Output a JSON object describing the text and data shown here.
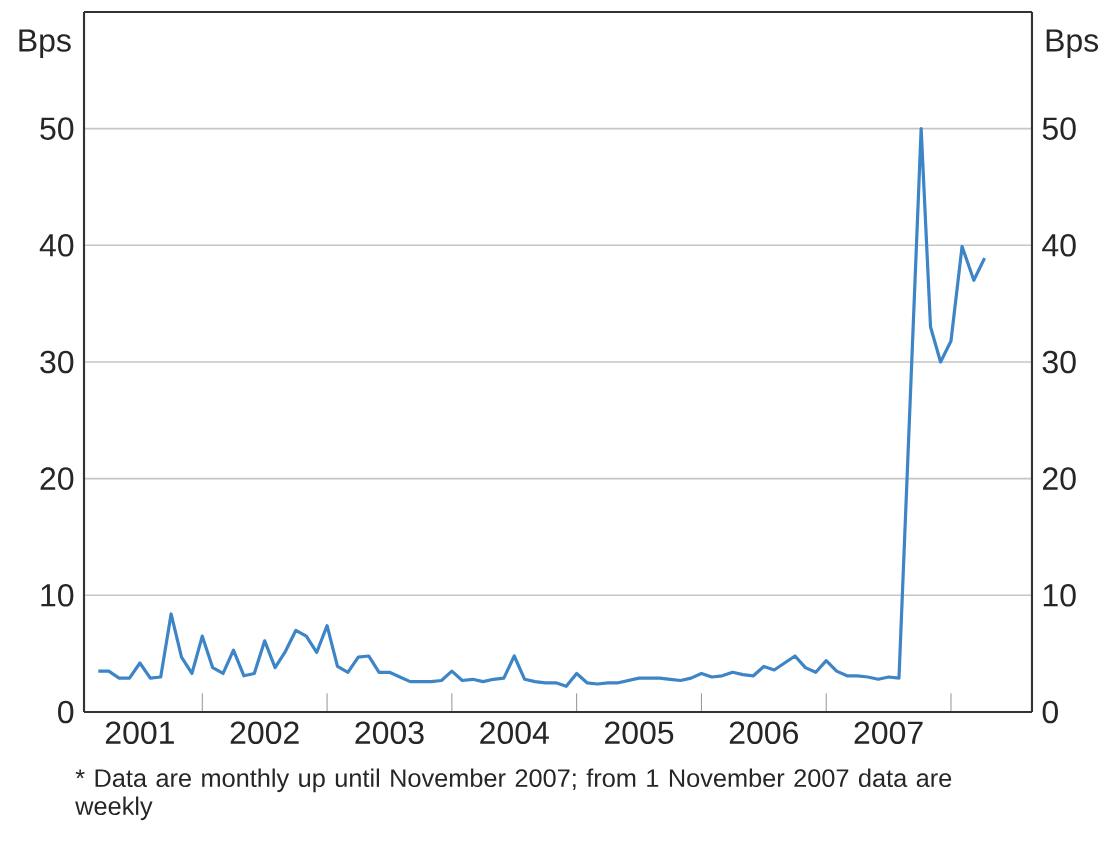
{
  "chart_data": {
    "type": "line",
    "ylabel": "Bps",
    "y2label": "Bps",
    "x": [
      "2001-03",
      "2001-04",
      "2001-05",
      "2001-06",
      "2001-07",
      "2001-08",
      "2001-09",
      "2001-10",
      "2001-11",
      "2001-12",
      "2002-01",
      "2002-02",
      "2002-03",
      "2002-04",
      "2002-05",
      "2002-06",
      "2002-07",
      "2002-08",
      "2002-09",
      "2002-10",
      "2002-11",
      "2002-12",
      "2003-01",
      "2003-02",
      "2003-03",
      "2003-04",
      "2003-05",
      "2003-06",
      "2003-07",
      "2003-08",
      "2003-09",
      "2003-10",
      "2003-11",
      "2003-12",
      "2004-01",
      "2004-02",
      "2004-03",
      "2004-04",
      "2004-05",
      "2004-06",
      "2004-07",
      "2004-08",
      "2004-09",
      "2004-10",
      "2004-11",
      "2004-12",
      "2005-01",
      "2005-02",
      "2005-03",
      "2005-04",
      "2005-05",
      "2005-06",
      "2005-07",
      "2005-08",
      "2005-09",
      "2005-10",
      "2005-11",
      "2005-12",
      "2006-01",
      "2006-02",
      "2006-03",
      "2006-04",
      "2006-05",
      "2006-06",
      "2006-07",
      "2006-08",
      "2006-09",
      "2006-10",
      "2006-11",
      "2006-12",
      "2007-01",
      "2007-02",
      "2007-03",
      "2007-04",
      "2007-05",
      "2007-06",
      "2007-07",
      "2007-08",
      "2007-10-05",
      "2007-11-02",
      "2007-12-01",
      "2008-01-01",
      "2008-02-03",
      "2008-03-07",
      "2008-04-08"
    ],
    "series": [
      {
        "color": "#3d85c6",
        "values": [
          3.5,
          3.5,
          2.9,
          2.9,
          4.2,
          2.9,
          3.0,
          8.4,
          4.7,
          3.3,
          6.5,
          3.8,
          3.3,
          5.3,
          3.1,
          3.3,
          6.1,
          3.8,
          5.2,
          7.0,
          6.5,
          5.1,
          7.4,
          3.9,
          3.4,
          4.7,
          4.8,
          3.4,
          3.4,
          3.0,
          2.6,
          2.6,
          2.6,
          2.7,
          3.5,
          2.7,
          2.8,
          2.6,
          2.8,
          2.9,
          4.8,
          2.8,
          2.6,
          2.5,
          2.5,
          2.2,
          3.3,
          2.5,
          2.4,
          2.5,
          2.5,
          2.7,
          2.9,
          2.9,
          2.9,
          2.8,
          2.7,
          2.9,
          3.3,
          3.0,
          3.1,
          3.4,
          3.2,
          3.1,
          3.9,
          3.6,
          4.2,
          4.8,
          3.8,
          3.4,
          4.4,
          3.5,
          3.1,
          3.1,
          3.0,
          2.8,
          3.0,
          2.9,
          50,
          33.0,
          30.0,
          31.8,
          39.9,
          37.0,
          38.9
        ]
      }
    ],
    "xlim": [
      "2001-01-20",
      "2008-08-25"
    ],
    "xticks": [
      {
        "value": "2001-07-01",
        "label": "2001"
      },
      {
        "value": "2002-07-01",
        "label": "2002"
      },
      {
        "value": "2003-07-01",
        "label": "2003"
      },
      {
        "value": "2004-07-01",
        "label": "2004"
      },
      {
        "value": "2005-07-01",
        "label": "2005"
      },
      {
        "value": "2006-07-01",
        "label": "2006"
      },
      {
        "value": "2007-07-01",
        "label": "2007"
      },
      {
        "value": "2002-01-01",
        "label": null
      },
      {
        "value": "2003-01-01",
        "label": null
      },
      {
        "value": "2004-01-01",
        "label": null
      },
      {
        "value": "2005-01-01",
        "label": null
      },
      {
        "value": "2006-01-01",
        "label": null
      },
      {
        "value": "2007-01-01",
        "label": null
      },
      {
        "value": "2008-01-01",
        "label": null
      }
    ],
    "ylim": [
      0,
      60
    ],
    "yticks": [
      0,
      10,
      20,
      30,
      40,
      50
    ],
    "y2lim": [
      0,
      60
    ],
    "y2ticks": [
      0,
      10,
      20,
      30,
      40,
      50
    ],
    "grid": "y",
    "marker": "none",
    "line_style": "solid",
    "annotations": [
      "*  Data are monthly up until November 2007; from 1 November 2007 data are weekly"
    ]
  }
}
